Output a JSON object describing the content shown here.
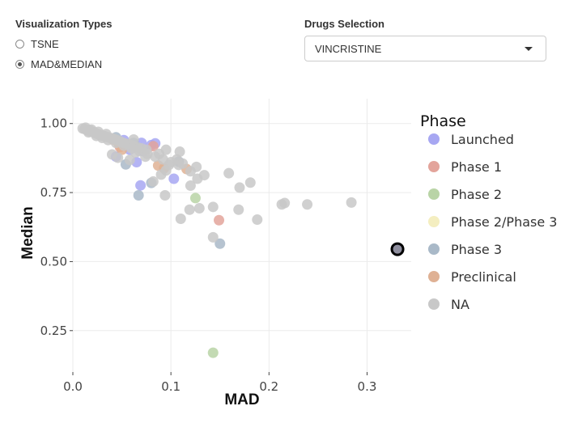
{
  "controls": {
    "viz_title": "Visualization Types",
    "viz_options": [
      {
        "label": "TSNE",
        "checked": false
      },
      {
        "label": "MAD&MEDIAN",
        "checked": true
      }
    ],
    "drug_title": "Drugs Selection",
    "drug_selected": "VINCRISTINE"
  },
  "chart_data": {
    "type": "scatter",
    "xlabel": "MAD",
    "ylabel": "Median",
    "xlim": [
      0,
      0.345
    ],
    "ylim": [
      0.1,
      1.09
    ],
    "xticks": [
      0.0,
      0.1,
      0.2,
      0.3
    ],
    "xtick_labels": [
      "0.0",
      "0.1",
      "0.2",
      "0.3"
    ],
    "yticks": [
      0.25,
      0.5,
      0.75,
      1.0
    ],
    "ytick_labels": [
      "0.25",
      "0.50",
      "0.75",
      "1.00"
    ],
    "grid": true,
    "legend_title": "Phase",
    "legend_position": "right",
    "series": [
      {
        "name": "Launched",
        "color": "#a7a7f2",
        "points": [
          [
            0.052,
            0.94
          ],
          [
            0.07,
            0.93
          ],
          [
            0.084,
            0.928
          ],
          [
            0.072,
            0.9
          ],
          [
            0.044,
            0.88
          ],
          [
            0.065,
            0.86
          ],
          [
            0.069,
            0.776
          ],
          [
            0.103,
            0.8
          ],
          [
            0.058,
            0.905
          ],
          [
            0.08,
            0.922
          ]
        ]
      },
      {
        "name": "Phase 1",
        "color": "#e3a49b",
        "points": [
          [
            0.149,
            0.65
          ],
          [
            0.048,
            0.915
          ],
          [
            0.082,
            0.918
          ]
        ]
      },
      {
        "name": "Phase 2",
        "color": "#b9d4a6",
        "points": [
          [
            0.125,
            0.73
          ],
          [
            0.143,
            0.17
          ]
        ]
      },
      {
        "name": "Phase 2/Phase 3",
        "color": "#f4eec0",
        "points": []
      },
      {
        "name": "Phase 3",
        "color": "#a9b9c8",
        "points": [
          [
            0.15,
            0.565
          ],
          [
            0.067,
            0.74
          ],
          [
            0.054,
            0.852
          ],
          [
            0.062,
            0.93
          ],
          [
            0.044,
            0.95
          ],
          [
            0.08,
            0.785
          ],
          [
            0.108,
            0.862
          ]
        ]
      },
      {
        "name": "Preclinical",
        "color": "#dfb194",
        "points": [
          [
            0.047,
            0.925
          ],
          [
            0.05,
            0.905
          ],
          [
            0.087,
            0.848
          ],
          [
            0.093,
            0.838
          ],
          [
            0.116,
            0.835
          ],
          [
            0.041,
            0.942
          ]
        ]
      },
      {
        "name": "NA",
        "color": "#c8c8c8",
        "points": [
          [
            0.01,
            0.982
          ],
          [
            0.012,
            0.98
          ],
          [
            0.014,
            0.978
          ],
          [
            0.015,
            0.975
          ],
          [
            0.017,
            0.976
          ],
          [
            0.018,
            0.972
          ],
          [
            0.02,
            0.97
          ],
          [
            0.022,
            0.968
          ],
          [
            0.023,
            0.965
          ],
          [
            0.025,
            0.962
          ],
          [
            0.027,
            0.96
          ],
          [
            0.028,
            0.958
          ],
          [
            0.03,
            0.956
          ],
          [
            0.032,
            0.955
          ],
          [
            0.034,
            0.952
          ],
          [
            0.036,
            0.95
          ],
          [
            0.038,
            0.948
          ],
          [
            0.04,
            0.946
          ],
          [
            0.042,
            0.944
          ],
          [
            0.045,
            0.94
          ],
          [
            0.048,
            0.936
          ],
          [
            0.05,
            0.932
          ],
          [
            0.053,
            0.928
          ],
          [
            0.056,
            0.925
          ],
          [
            0.059,
            0.922
          ],
          [
            0.062,
            0.918
          ],
          [
            0.066,
            0.914
          ],
          [
            0.07,
            0.91
          ],
          [
            0.075,
            0.905
          ],
          [
            0.016,
            0.968
          ],
          [
            0.024,
            0.955
          ],
          [
            0.03,
            0.948
          ],
          [
            0.036,
            0.94
          ],
          [
            0.044,
            0.93
          ],
          [
            0.052,
            0.92
          ],
          [
            0.06,
            0.91
          ],
          [
            0.068,
            0.9
          ],
          [
            0.076,
            0.89
          ],
          [
            0.084,
            0.88
          ],
          [
            0.092,
            0.87
          ],
          [
            0.1,
            0.86
          ],
          [
            0.108,
            0.85
          ],
          [
            0.04,
            0.888
          ],
          [
            0.046,
            0.876
          ],
          [
            0.058,
            0.868
          ],
          [
            0.064,
            0.895
          ],
          [
            0.074,
            0.88
          ],
          [
            0.088,
            0.89
          ],
          [
            0.095,
            0.905
          ],
          [
            0.109,
            0.898
          ],
          [
            0.12,
            0.827
          ],
          [
            0.126,
            0.843
          ],
          [
            0.134,
            0.813
          ],
          [
            0.09,
            0.815
          ],
          [
            0.095,
            0.83
          ],
          [
            0.098,
            0.85
          ],
          [
            0.106,
            0.87
          ],
          [
            0.112,
            0.855
          ],
          [
            0.082,
            0.79
          ],
          [
            0.12,
            0.775
          ],
          [
            0.127,
            0.8
          ],
          [
            0.159,
            0.82
          ],
          [
            0.17,
            0.768
          ],
          [
            0.181,
            0.786
          ],
          [
            0.094,
            0.74
          ],
          [
            0.11,
            0.655
          ],
          [
            0.119,
            0.688
          ],
          [
            0.129,
            0.693
          ],
          [
            0.143,
            0.698
          ],
          [
            0.169,
            0.688
          ],
          [
            0.188,
            0.652
          ],
          [
            0.213,
            0.707
          ],
          [
            0.216,
            0.712
          ],
          [
            0.239,
            0.707
          ],
          [
            0.284,
            0.714
          ],
          [
            0.143,
            0.588
          ],
          [
            0.013,
            0.985
          ],
          [
            0.019,
            0.978
          ],
          [
            0.026,
            0.97
          ],
          [
            0.034,
            0.962
          ],
          [
            0.062,
            0.942
          ]
        ]
      }
    ],
    "highlight": {
      "label": "VINCRISTINE",
      "x": 0.331,
      "y": 0.545
    }
  }
}
